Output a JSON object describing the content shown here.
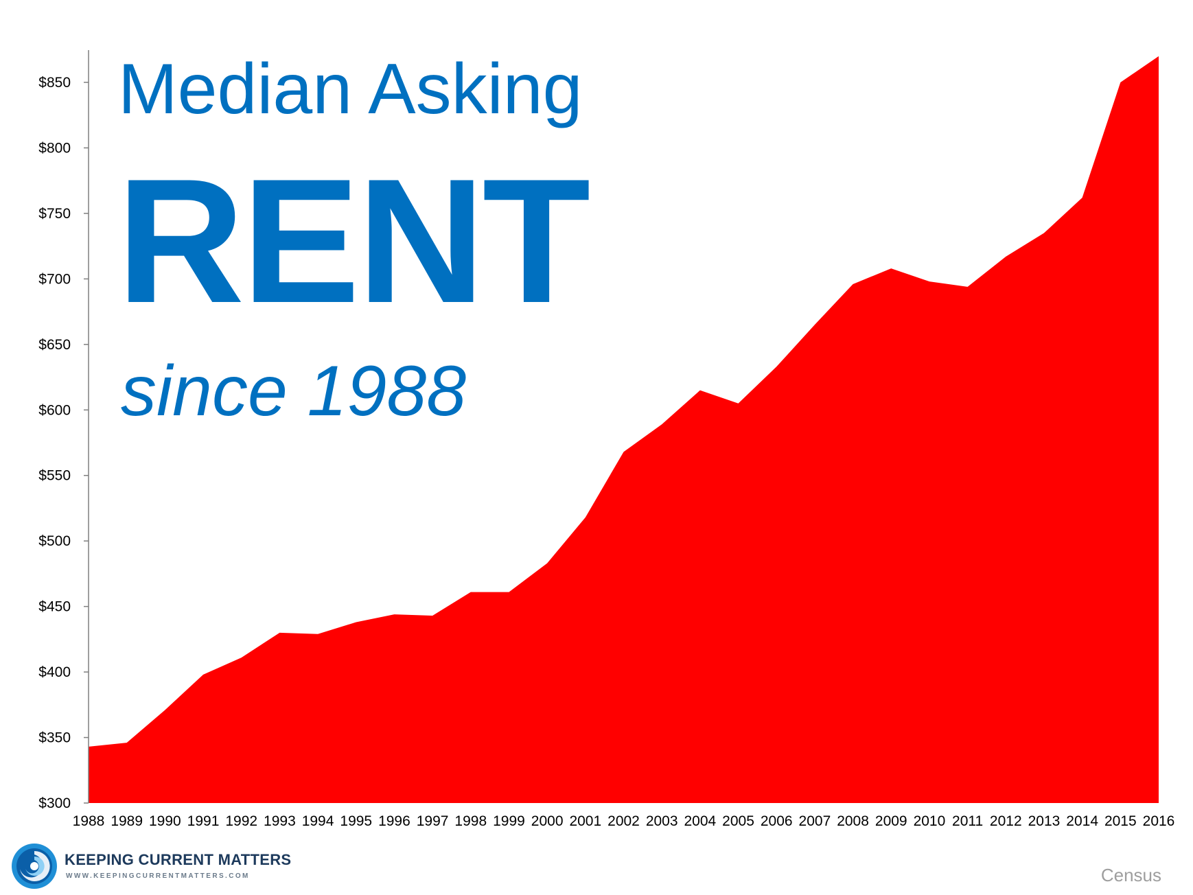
{
  "title": {
    "line1": "Median Asking",
    "line2": "RENT",
    "line3": "since 1988"
  },
  "chart_data": {
    "type": "area",
    "x": [
      1988,
      1989,
      1990,
      1991,
      1992,
      1993,
      1994,
      1995,
      1996,
      1997,
      1998,
      1999,
      2000,
      2001,
      2002,
      2003,
      2004,
      2005,
      2006,
      2007,
      2008,
      2009,
      2010,
      2011,
      2012,
      2013,
      2014,
      2015,
      2016
    ],
    "series": [
      {
        "values": [
          343,
          346,
          371,
          398,
          411,
          430,
          429,
          438,
          444,
          443,
          461,
          461,
          483,
          518,
          568,
          589,
          615,
          605,
          633,
          665,
          696,
          708,
          698,
          694,
          717,
          735,
          762,
          850,
          870
        ],
        "color": "#ff0000"
      }
    ],
    "ylim": [
      300,
      870
    ],
    "yticks": [
      300,
      350,
      400,
      450,
      500,
      550,
      600,
      650,
      700,
      750,
      800,
      850
    ],
    "ytick_labels": [
      "$300",
      "$350",
      "$400",
      "$450",
      "$500",
      "$550",
      "$600",
      "$650",
      "$700",
      "$750",
      "$800",
      "$850"
    ],
    "xtick_labels": [
      "1988",
      "1989",
      "1990",
      "1991",
      "1992",
      "1993",
      "1994",
      "1995",
      "1996",
      "1997",
      "1998",
      "1999",
      "2000",
      "2001",
      "2002",
      "2003",
      "2004",
      "2005",
      "2006",
      "2007",
      "2008",
      "2009",
      "2010",
      "2011",
      "2012",
      "2013",
      "2014",
      "2015",
      "2016"
    ],
    "grid": false,
    "title_color": "#0070c0"
  },
  "logo": {
    "name": "KEEPING CURRENT MATTERS",
    "url": "WWW.KEEPINGCURRENTMATTERS.COM"
  },
  "source": "Census"
}
